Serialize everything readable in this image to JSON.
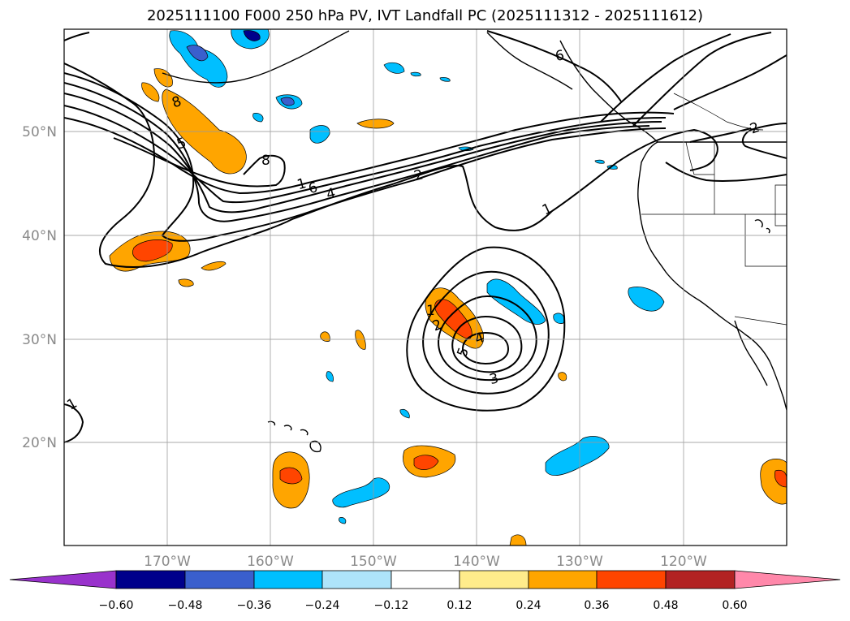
{
  "title": "2025111100 F000 250 hPa PV, IVT Landfall PC (2025111312 - 2025111612)",
  "lon_labels": [
    "170°W",
    "160°W",
    "150°W",
    "140°W",
    "130°W",
    "120°W"
  ],
  "lat_labels": [
    "50°N",
    "40°N",
    "30°N",
    "20°N"
  ],
  "colorbar": {
    "ticks": [
      "−0.60",
      "−0.48",
      "−0.36",
      "−0.24",
      "−0.12",
      "0.12",
      "0.24",
      "0.36",
      "0.48",
      "0.60"
    ],
    "colors": [
      "#9932cc",
      "#00008b",
      "#3a5fcd",
      "#00bfff",
      "#aee4fa",
      "#ffffff",
      "#ffec8b",
      "#ffa500",
      "#ff4500",
      "#b22222",
      "#ff88aa"
    ]
  },
  "contour_labels": [
    "1",
    "2",
    "4",
    "6",
    "8",
    "1",
    "8",
    "5",
    "2",
    "4",
    "5",
    "3",
    "1",
    "6",
    "2",
    "1"
  ],
  "colors": {
    "positive_fill": "#ffa500",
    "strong_positive": "#ff4500",
    "negative_fill": "#00bfff",
    "strong_negative": "#3a5fcd",
    "deep_negative": "#00008b",
    "contour": "#000000"
  }
}
